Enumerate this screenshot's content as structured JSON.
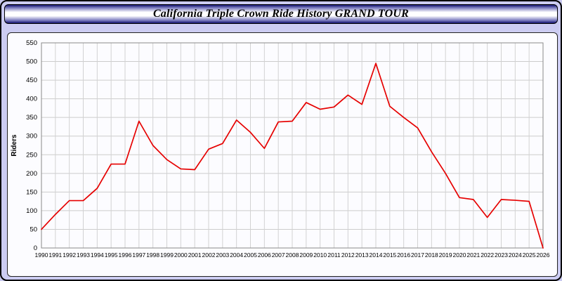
{
  "header": {
    "title": "California Triple Crown Ride History GRAND TOUR"
  },
  "chart_data": {
    "type": "line",
    "title": "California Triple Crown Ride History GRAND TOUR",
    "xlabel": "",
    "ylabel": "Riders",
    "ylim": [
      0,
      550
    ],
    "y_tick_step": 50,
    "grid": true,
    "legend": "none",
    "line_color": "#e60000",
    "x": [
      1990,
      1991,
      1992,
      1993,
      1994,
      1995,
      1996,
      1997,
      1998,
      1999,
      2000,
      2001,
      2002,
      2003,
      2004,
      2005,
      2006,
      2007,
      2008,
      2009,
      2010,
      2011,
      2012,
      2013,
      2014,
      2015,
      2016,
      2017,
      2018,
      2019,
      2020,
      2021,
      2022,
      2023,
      2024,
      2025,
      2026
    ],
    "values": [
      50,
      90,
      127,
      127,
      160,
      225,
      225,
      340,
      275,
      237,
      212,
      210,
      265,
      280,
      343,
      310,
      267,
      338,
      340,
      390,
      372,
      378,
      410,
      385,
      495,
      380,
      350,
      322,
      258,
      200,
      135,
      130,
      82,
      130,
      128,
      125,
      0
    ]
  }
}
